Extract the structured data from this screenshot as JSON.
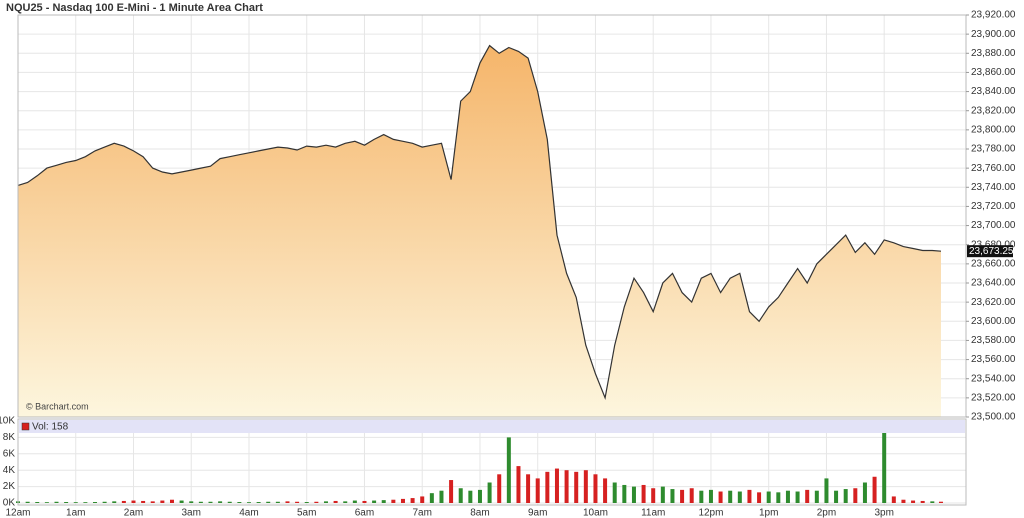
{
  "chart_data": {
    "type": "area",
    "title": "NQU25 - Nasdaq 100 E-Mini - 1 Minute Area Chart",
    "watermark": "© Barchart.com",
    "x": [
      0,
      10,
      20,
      30,
      40,
      50,
      60,
      70,
      80,
      90,
      100,
      110,
      120,
      130,
      140,
      150,
      160,
      170,
      180,
      190,
      200,
      210,
      220,
      230,
      240,
      250,
      260,
      270,
      280,
      290,
      300,
      310,
      320,
      330,
      340,
      350,
      360,
      370,
      380,
      390,
      400,
      410,
      420,
      430,
      440,
      450,
      460,
      470,
      480,
      490,
      500,
      510,
      520,
      530,
      540,
      550,
      560,
      570,
      580,
      590,
      600,
      610,
      620,
      630,
      640,
      650,
      660,
      670,
      680,
      690,
      700,
      710,
      720,
      730,
      740,
      750,
      760,
      770,
      780,
      790,
      800,
      810,
      820,
      830,
      840,
      850,
      860,
      870,
      880,
      890,
      900,
      910,
      920,
      930,
      940,
      950,
      959
    ],
    "values": [
      23742,
      23745,
      23752,
      23760,
      23763,
      23766,
      23768,
      23772,
      23778,
      23782,
      23786,
      23783,
      23778,
      23772,
      23760,
      23756,
      23754,
      23756,
      23758,
      23760,
      23762,
      23770,
      23772,
      23774,
      23776,
      23778,
      23780,
      23782,
      23781,
      23779,
      23783,
      23782,
      23784,
      23782,
      23786,
      23788,
      23784,
      23790,
      23795,
      23790,
      23788,
      23786,
      23782,
      23784,
      23786,
      23748,
      23830,
      23840,
      23870,
      23888,
      23880,
      23886,
      23882,
      23875,
      23840,
      23790,
      23690,
      23650,
      23625,
      23575,
      23545,
      23520,
      23575,
      23615,
      23645,
      23630,
      23610,
      23640,
      23650,
      23630,
      23620,
      23645,
      23650,
      23630,
      23645,
      23650,
      23610,
      23600,
      23615,
      23625,
      23640,
      23655,
      23640,
      23660,
      23670,
      23680,
      23690,
      23672,
      23682,
      23670,
      23685,
      23682,
      23678,
      23676,
      23674,
      23674,
      23673.25
    ],
    "last_price_label": "23,673.25",
    "line_color": "#333333",
    "fill_top": "#f5b56a",
    "fill_bottom": "#fdf6de",
    "xlim": [
      0,
      985
    ],
    "xticks": [
      {
        "value": 0,
        "label": "12am"
      },
      {
        "value": 60,
        "label": "1am"
      },
      {
        "value": 120,
        "label": "2am"
      },
      {
        "value": 180,
        "label": "3am"
      },
      {
        "value": 240,
        "label": "4am"
      },
      {
        "value": 300,
        "label": "5am"
      },
      {
        "value": 360,
        "label": "6am"
      },
      {
        "value": 420,
        "label": "7am"
      },
      {
        "value": 480,
        "label": "8am"
      },
      {
        "value": 540,
        "label": "9am"
      },
      {
        "value": 600,
        "label": "10am"
      },
      {
        "value": 660,
        "label": "11am"
      },
      {
        "value": 720,
        "label": "12pm"
      },
      {
        "value": 780,
        "label": "1pm"
      },
      {
        "value": 840,
        "label": "2pm"
      },
      {
        "value": 900,
        "label": "3pm"
      }
    ],
    "ylim": [
      23500,
      23920
    ],
    "yticks": [
      {
        "value": 23500,
        "label": "23,500.00"
      },
      {
        "value": 23520,
        "label": "23,520.00"
      },
      {
        "value": 23540,
        "label": "23,540.00"
      },
      {
        "value": 23560,
        "label": "23,560.00"
      },
      {
        "value": 23580,
        "label": "23,580.00"
      },
      {
        "value": 23600,
        "label": "23,600.00"
      },
      {
        "value": 23620,
        "label": "23,620.00"
      },
      {
        "value": 23640,
        "label": "23,640.00"
      },
      {
        "value": 23660,
        "label": "23,660.00"
      },
      {
        "value": 23680,
        "label": "23,680.00"
      },
      {
        "value": 23700,
        "label": "23,700.00"
      },
      {
        "value": 23720,
        "label": "23,720.00"
      },
      {
        "value": 23740,
        "label": "23,740.00"
      },
      {
        "value": 23760,
        "label": "23,760.00"
      },
      {
        "value": 23780,
        "label": "23,780.00"
      },
      {
        "value": 23800,
        "label": "23,800.00"
      },
      {
        "value": 23820,
        "label": "23,820.00"
      },
      {
        "value": 23840,
        "label": "23,840.00"
      },
      {
        "value": 23860,
        "label": "23,860.00"
      },
      {
        "value": 23880,
        "label": "23,880.00"
      },
      {
        "value": 23900,
        "label": "23,900.00"
      },
      {
        "value": 23920,
        "label": "23,920.00"
      }
    ],
    "grid": true,
    "volume": {
      "label": "Vol: 158",
      "up_color": "#2e8b2e",
      "down_color": "#d62020",
      "values": [
        200,
        150,
        120,
        100,
        150,
        120,
        100,
        100,
        120,
        150,
        200,
        250,
        300,
        250,
        200,
        300,
        400,
        300,
        200,
        150,
        150,
        200,
        150,
        120,
        100,
        120,
        150,
        150,
        200,
        150,
        120,
        150,
        200,
        250,
        200,
        300,
        250,
        300,
        350,
        400,
        500,
        600,
        800,
        1200,
        1500,
        2800,
        1800,
        1500,
        1600,
        2500,
        3500,
        8000,
        4500,
        3500,
        3000,
        3800,
        4200,
        4000,
        3800,
        4000,
        3500,
        3000,
        2500,
        2200,
        2000,
        2200,
        1800,
        2000,
        1700,
        1600,
        1800,
        1500,
        1600,
        1400,
        1500,
        1400,
        1600,
        1300,
        1400,
        1300,
        1500,
        1400,
        1600,
        1500,
        3000,
        1500,
        1700,
        1800,
        2500,
        3200,
        9000,
        800,
        400,
        300,
        250,
        200,
        158
      ],
      "ylim": [
        0,
        10000
      ],
      "yticks": [
        {
          "value": 0,
          "label": "0K"
        },
        {
          "value": 2000,
          "label": "2K"
        },
        {
          "value": 4000,
          "label": "4K"
        },
        {
          "value": 6000,
          "label": "6K"
        },
        {
          "value": 8000,
          "label": "8K"
        },
        {
          "value": 10000,
          "label": "10K"
        }
      ]
    }
  }
}
